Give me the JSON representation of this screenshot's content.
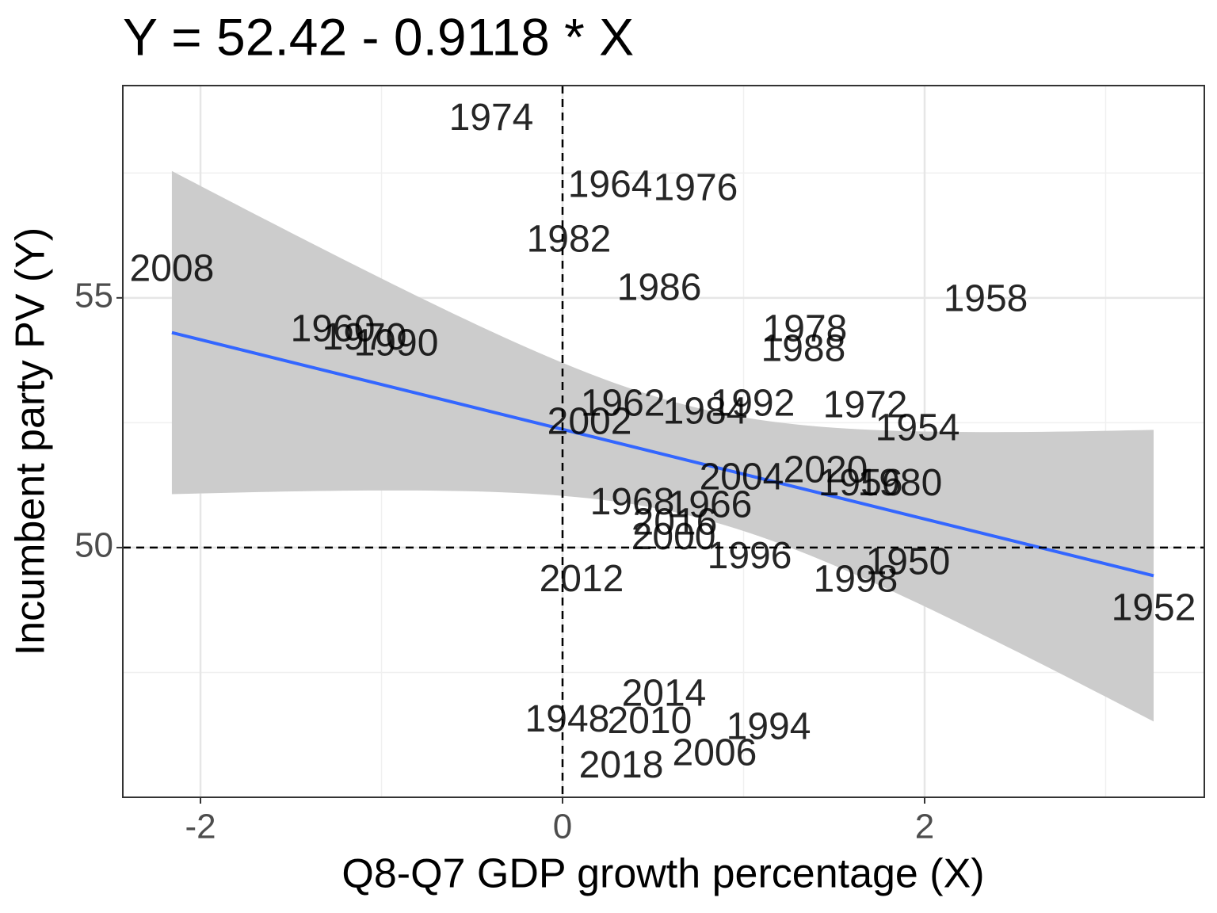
{
  "chart_data": {
    "type": "scatter",
    "title": "Y = 52.42 - 0.9118  * X",
    "xlabel": "Q8-Q7 GDP growth percentage (X)",
    "ylabel": "Incumbent party PV (Y)",
    "labels": [
      "1974",
      "1964",
      "1976",
      "1982",
      "2008",
      "1986",
      "1958",
      "1960",
      "1970",
      "1990",
      "1978",
      "1988",
      "1962",
      "1992",
      "1972",
      "1984",
      "2002",
      "1954",
      "2020",
      "2004",
      "1956",
      "1980",
      "1968",
      "1966",
      "2016",
      "2000",
      "1996",
      "1950",
      "1998",
      "2012",
      "1952",
      "2014",
      "1948",
      "2010",
      "1994",
      "2006",
      "2018"
    ],
    "x": [
      -0.394,
      0.263,
      0.735,
      0.035,
      -2.158,
      0.534,
      2.337,
      -1.269,
      -1.094,
      -0.919,
      1.339,
      1.33,
      0.333,
      1.05,
      1.672,
      0.788,
      0.149,
      1.961,
      1.453,
      0.989,
      1.646,
      1.864,
      0.385,
      0.814,
      0.621,
      0.613,
      1.033,
      1.908,
      1.619,
      0.105,
      3.265,
      0.56,
      0.026,
      0.481,
      1.138,
      0.84,
      0.324
    ],
    "y": [
      58.56,
      57.22,
      57.16,
      56.13,
      55.54,
      55.16,
      54.94,
      54.33,
      54.17,
      54.05,
      54.33,
      53.94,
      52.84,
      52.84,
      52.81,
      52.68,
      52.48,
      52.35,
      51.51,
      51.37,
      51.25,
      51.25,
      50.87,
      50.81,
      50.46,
      50.17,
      49.79,
      49.67,
      49.32,
      49.33,
      48.75,
      47.03,
      46.52,
      46.49,
      46.37,
      45.84,
      45.6
    ],
    "xlim": [
      -2.429,
      3.545
    ],
    "ylim": [
      45.0,
      59.25
    ],
    "xticks": [
      -2,
      0,
      2
    ],
    "yticks": [
      50,
      55
    ],
    "reference_lines": {
      "x": 0,
      "y": 50
    },
    "fit_color": "#3366ff",
    "band_color": "#cccccc",
    "grid": true
  }
}
